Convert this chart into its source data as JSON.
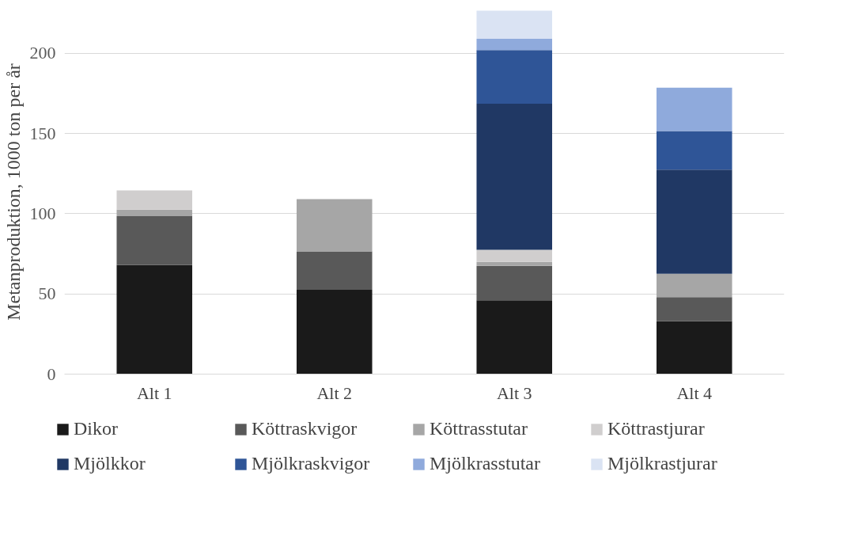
{
  "chart_data": {
    "type": "bar",
    "stacked": true,
    "ylabel": "Metanproduktion, 1000 ton per år",
    "categories": [
      "Alt 1",
      "Alt 2",
      "Alt 3",
      "Alt 4"
    ],
    "series": [
      {
        "name": "Dikor",
        "color": "#1a1a1a",
        "values": [
          68,
          52.5,
          46,
          33
        ]
      },
      {
        "name": "Köttraskvigor",
        "color": "#595959",
        "values": [
          30.5,
          24,
          21.5,
          15
        ]
      },
      {
        "name": "Köttrasstutar",
        "color": "#a6a6a6",
        "values": [
          4,
          32.5,
          2.5,
          14.5
        ]
      },
      {
        "name": "Köttrastjurar",
        "color": "#d0cece",
        "values": [
          12,
          0,
          7.5,
          0
        ]
      },
      {
        "name": "Mjölkkor",
        "color": "#203864",
        "values": [
          0,
          0,
          91,
          65
        ]
      },
      {
        "name": "Mjölkraskvigor",
        "color": "#2f5597",
        "values": [
          0,
          0,
          33.5,
          24
        ]
      },
      {
        "name": "Mjölkrasstutar",
        "color": "#8faadc",
        "values": [
          0,
          0,
          7,
          27
        ]
      },
      {
        "name": "Mjölkrastjurar",
        "color": "#dae3f3",
        "values": [
          0,
          0,
          17.5,
          0
        ]
      }
    ],
    "ylim": [
      0,
      227
    ],
    "yticks": [
      0,
      50,
      100,
      150,
      200
    ],
    "grid": "y",
    "legend": "bottom"
  }
}
